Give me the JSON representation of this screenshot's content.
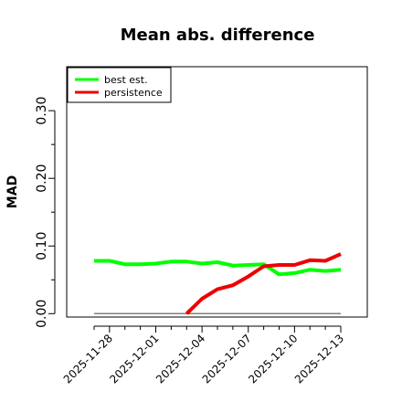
{
  "chart_data": {
    "type": "line",
    "title": "Mean abs. difference",
    "xlabel": "",
    "ylabel": "MAD",
    "x": [
      "2025-11-27",
      "2025-11-28",
      "2025-11-29",
      "2025-11-30",
      "2025-12-01",
      "2025-12-02",
      "2025-12-03",
      "2025-12-04",
      "2025-12-05",
      "2025-12-06",
      "2025-12-07",
      "2025-12-08",
      "2025-12-09",
      "2025-12-10",
      "2025-12-11",
      "2025-12-12",
      "2025-12-13"
    ],
    "xticks": [
      "2025-11-28",
      "2025-12-01",
      "2025-12-04",
      "2025-12-07",
      "2025-12-10",
      "2025-12-13"
    ],
    "yticks": [
      "0.00",
      "0.10",
      "0.20",
      "0.30"
    ],
    "ylim": [
      -0.005,
      0.365
    ],
    "grid": false,
    "legend_position": "top-left",
    "series": [
      {
        "name": "best est.",
        "color": "#00ff00",
        "values": [
          0.078,
          0.078,
          0.073,
          0.073,
          0.074,
          0.077,
          0.077,
          0.074,
          0.076,
          0.071,
          0.072,
          0.073,
          0.058,
          0.06,
          0.065,
          0.063,
          0.065
        ]
      },
      {
        "name": "persistence",
        "color": "#ee0000",
        "values": [
          null,
          null,
          null,
          null,
          null,
          null,
          0.0,
          0.022,
          0.036,
          0.042,
          0.055,
          0.07,
          0.072,
          0.072,
          0.079,
          0.078,
          0.088
        ]
      }
    ],
    "reference_line": {
      "y": 0.0,
      "color": "#808080"
    }
  }
}
